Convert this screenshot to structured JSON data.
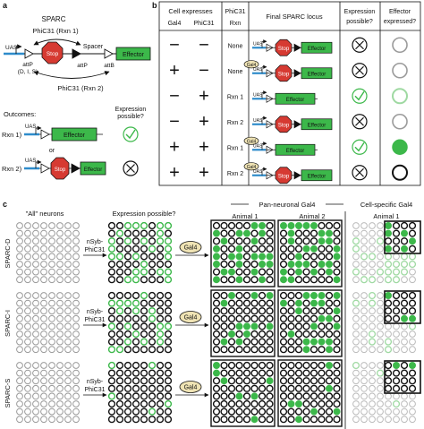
{
  "panel_a": {
    "letter": "a",
    "title": "SPARC",
    "rxn1_label": "PhiC31 (Rxn 1)",
    "rxn2_label": "PhiC31 (Rxn 2)",
    "uas": "UAS",
    "stop": "Stop",
    "spacer": "Spacer",
    "effector": "Effector",
    "attP_left": "attP",
    "attP_variants": "(D, I, S)",
    "attP_mid": "attP",
    "attB": "attB",
    "outcomes": "Outcomes:",
    "expression_possible": "Expression possible?",
    "outcome1_label": "Rxn 1)",
    "outcome2_label": "Rxn 2)",
    "or": "or"
  },
  "panel_b": {
    "letter": "b",
    "headers": {
      "cell_expresses": "Cell expresses",
      "gal4": "Gal4",
      "phic31": "PhiC31",
      "phic31_top": "PhiC31",
      "rxn": "Rxn",
      "final_locus": "Final SPARC locus",
      "expr_possible_1": "Expression",
      "expr_possible_2": "possible?",
      "effector_1": "Effector",
      "effector_2": "expressed?"
    },
    "rows": [
      {
        "gal4": "−",
        "phic31": "−",
        "rxn": "None",
        "locus": "stop",
        "gal4_bound": false,
        "possible": "no",
        "effector": "dim"
      },
      {
        "gal4": "+",
        "phic31": "−",
        "rxn": "None",
        "locus": "stop",
        "gal4_bound": true,
        "possible": "no",
        "effector": "dim"
      },
      {
        "gal4": "−",
        "phic31": "+",
        "rxn": "Rxn 1",
        "locus": "effector",
        "gal4_bound": false,
        "possible": "yes",
        "effector": "light"
      },
      {
        "gal4": "−",
        "phic31": "+",
        "rxn": "Rxn 2",
        "locus": "stop",
        "gal4_bound": false,
        "possible": "no",
        "effector": "dim"
      },
      {
        "gal4": "+",
        "phic31": "+",
        "rxn": "Rxn 1",
        "locus": "effector",
        "gal4_bound": true,
        "possible": "yes",
        "effector": "full"
      },
      {
        "gal4": "+",
        "phic31": "+",
        "rxn": "Rxn 2",
        "locus": "stop",
        "gal4_bound": true,
        "possible": "no",
        "effector": "black"
      }
    ],
    "gal4_tag": "Gal4",
    "uas": "UAS",
    "stop": "Stop",
    "effector": "Effector"
  },
  "panel_c": {
    "letter": "c",
    "all_neurons": "\"All\" neurons",
    "expression_possible": "Expression possible?",
    "pan_neuronal": "Pan-neuronal Gal4",
    "cell_specific": "Cell-specific Gal4",
    "animal1": "Animal 1",
    "animal2": "Animal 2",
    "animal1_cs": "Animal 1",
    "driver_1": "nSyb-",
    "driver_2": "PhiC31",
    "gal4": "Gal4",
    "rows": [
      {
        "label": "SPARC-D"
      },
      {
        "label": "SPARC-I"
      },
      {
        "label": "SPARC-S"
      }
    ]
  },
  "colors": {
    "green": "#3cb84a",
    "light_green": "#9fd9a2",
    "gray": "#9a9a9a",
    "dark": "#111111",
    "blue": "#2e8ccb",
    "red": "#d63a32",
    "gal4_fill": "#efe3b4"
  }
}
